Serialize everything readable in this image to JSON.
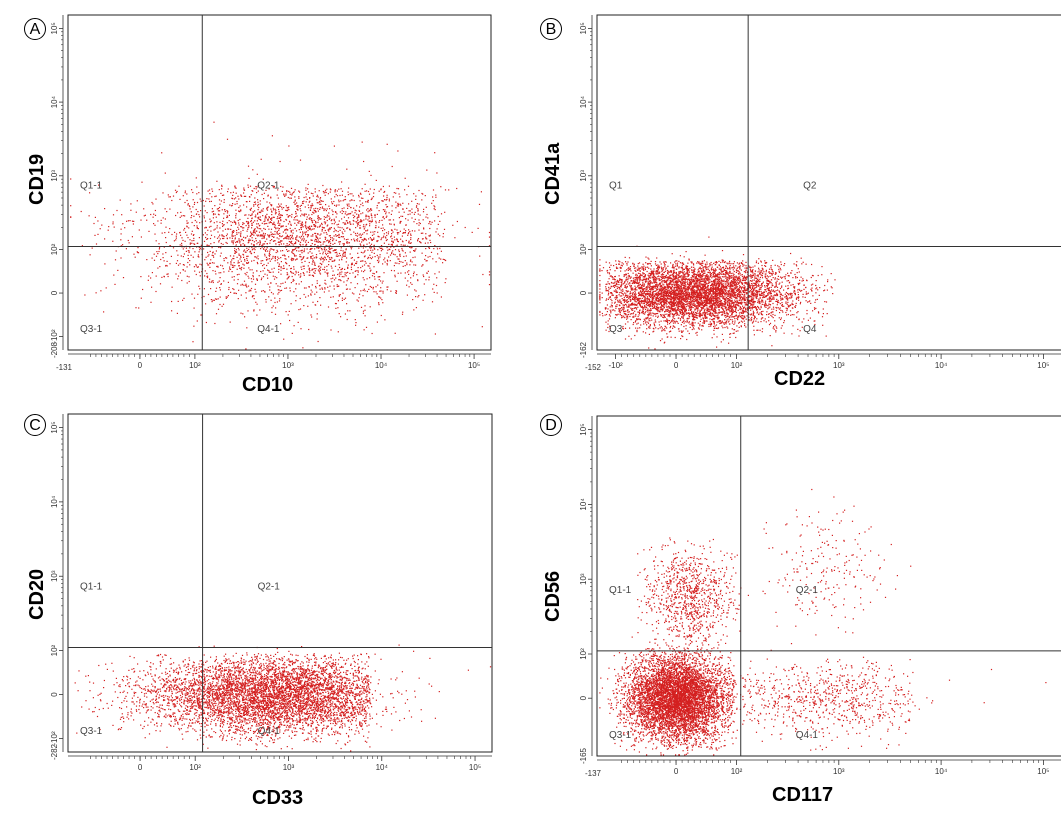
{
  "chart_data": [
    {
      "type": "scatter",
      "panel": "A",
      "title": "",
      "xlabel": "CD10",
      "ylabel": "CD19",
      "x_scale": "biexponential",
      "y_scale": "biexponential",
      "x_min_label": "-131",
      "y_min_label": "-208",
      "x_ticks": [
        "0",
        "10²",
        "10³",
        "10⁴",
        "10⁵"
      ],
      "y_ticks": [
        "-10²",
        "0",
        "10²",
        "10³",
        "10⁴",
        "10⁵"
      ],
      "gate": {
        "x": 120,
        "y": 110
      },
      "quadrants": [
        "Q1-1",
        "Q2-1",
        "Q3-1",
        "Q4-1"
      ],
      "point_color": "#d42020",
      "populations": [
        {
          "x_range": [
            -100,
            40000
          ],
          "y_range": [
            -150,
            600
          ],
          "density": "high",
          "x_center": 1500,
          "y_center": 150
        }
      ]
    },
    {
      "type": "scatter",
      "panel": "B",
      "title": "",
      "xlabel": "CD22",
      "ylabel": "CD41a",
      "x_scale": "biexponential",
      "y_scale": "biexponential",
      "x_min_label": "-152",
      "y_min_label": "-162",
      "x_ticks": [
        "-10²",
        "0",
        "10²",
        "10³",
        "10⁴",
        "10⁵"
      ],
      "y_ticks": [
        "0",
        "10²",
        "10³",
        "10⁴",
        "10⁵"
      ],
      "gate": {
        "x": 130,
        "y": 110
      },
      "quadrants": [
        "Q1",
        "Q2",
        "Q3",
        "Q4"
      ],
      "point_color": "#d42020",
      "populations": [
        {
          "x_range": [
            -120,
            700
          ],
          "y_range": [
            -120,
            60
          ],
          "density": "very high",
          "x_center": 30,
          "y_center": 0
        }
      ]
    },
    {
      "type": "scatter",
      "panel": "C",
      "title": "",
      "xlabel": "CD33",
      "ylabel": "CD20",
      "x_scale": "biexponential",
      "y_scale": "biexponential",
      "x_min_label": "",
      "y_min_label": "-282",
      "x_ticks": [
        "0",
        "10²",
        "10³",
        "10⁴",
        "10⁵"
      ],
      "y_ticks": [
        "-10²",
        "0",
        "10²",
        "10³",
        "10⁴",
        "10⁵"
      ],
      "gate": {
        "x": 120,
        "y": 110
      },
      "quadrants": [
        "Q1-1",
        "Q2-1",
        "Q3-1",
        "Q4-1"
      ],
      "point_color": "#d42020",
      "populations": [
        {
          "x_range": [
            -150,
            6000
          ],
          "y_range": [
            -150,
            80
          ],
          "density": "very high",
          "x_center": 700,
          "y_center": 0
        }
      ]
    },
    {
      "type": "scatter",
      "panel": "D",
      "title": "",
      "xlabel": "CD117",
      "ylabel": "CD56",
      "x_scale": "biexponential",
      "y_scale": "biexponential",
      "x_min_label": "-137",
      "y_min_label": "-165",
      "x_ticks": [
        "0",
        "10²",
        "10³",
        "10⁴",
        "10⁵"
      ],
      "y_ticks": [
        "0",
        "10²",
        "10³",
        "10⁴",
        "10⁵"
      ],
      "gate": {
        "x": 110,
        "y": 110
      },
      "quadrants": [
        "Q1-1",
        "Q2-1",
        "Q3-1",
        "Q4-1"
      ],
      "point_color": "#d42020",
      "populations": [
        {
          "x_range": [
            -100,
            80
          ],
          "y_range": [
            -120,
            100
          ],
          "density": "very high",
          "x_center": 0,
          "y_center": 0
        },
        {
          "x_range": [
            -80,
            4000
          ],
          "y_range": [
            -120,
            80
          ],
          "density": "medium",
          "x_center": 800,
          "y_center": 0
        },
        {
          "x_range": [
            -50,
            100
          ],
          "y_range": [
            100,
            3000
          ],
          "density": "medium",
          "x_center": 20,
          "y_center": 600
        },
        {
          "x_range": [
            150,
            3000
          ],
          "y_range": [
            150,
            8000
          ],
          "density": "sparse",
          "x_center": 800,
          "y_center": 1500
        }
      ]
    }
  ]
}
